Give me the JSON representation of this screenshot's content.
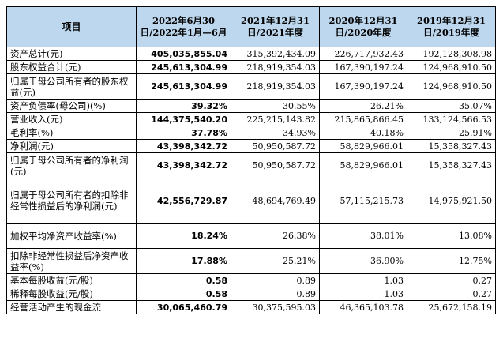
{
  "header": {
    "item": "项目",
    "col1": "2022年6月30日/2022年1月—6月",
    "col2": "2021年12月31日/2021年度",
    "col3": "2020年12月31日/2020年度",
    "col4": "2019年12月31日/2019年度"
  },
  "rows": [
    {
      "label": "资产总计(元)",
      "v1": "405,035,855.04",
      "v2": "315,392,434.09",
      "v3": "226,717,932.43",
      "v4": "192,128,308.98"
    },
    {
      "label": "股东权益合计(元)",
      "v1": "245,613,304.99",
      "v2": "218,919,354.03",
      "v3": "167,390,197.24",
      "v4": "124,968,910.50"
    },
    {
      "label": "归属于母公司所有者的股东权益(元)",
      "v1": "245,613,304.99",
      "v2": "218,919,354.03",
      "v3": "167,390,197.24",
      "v4": "124,968,910.50"
    },
    {
      "label": "资产负债率(母公司)(%)",
      "v1": "39.32%",
      "v2": "30.55%",
      "v3": "26.21%",
      "v4": "35.07%"
    },
    {
      "label": "营业收入(元)",
      "v1": "144,375,540.20",
      "v2": "225,215,143.82",
      "v3": "215,865,866.45",
      "v4": "133,124,566.53"
    },
    {
      "label": "毛利率(%)",
      "v1": "37.78%",
      "v2": "34.93%",
      "v3": "40.18%",
      "v4": "25.91%"
    },
    {
      "label": "净利润(元)",
      "v1": "43,398,342.72",
      "v2": "50,950,587.72",
      "v3": "58,829,966.01",
      "v4": "15,358,327.43"
    },
    {
      "label": "归属于母公司所有者的净利润(元)",
      "v1": "43,398,342.72",
      "v2": "50,950,587.72",
      "v3": "58,829,966.01",
      "v4": "15,358,327.43"
    },
    {
      "label": "归属于母公司所有者的扣除非经常性损益后的净利润(元)",
      "v1": "42,556,729.87",
      "v2": "48,694,769.49",
      "v3": "57,115,215.73",
      "v4": "14,975,921.50"
    },
    {
      "label": "加权平均净资产收益率(%)",
      "v1": "18.24%",
      "v2": "26.38%",
      "v3": "38.01%",
      "v4": "13.08%"
    },
    {
      "label": "扣除非经常性损益后净资产收益率(%)",
      "v1": "17.88%",
      "v2": "25.21%",
      "v3": "36.90%",
      "v4": "12.75%"
    },
    {
      "label": "基本每股收益(元/股)",
      "v1": "0.58",
      "v2": "0.89",
      "v3": "1.03",
      "v4": "0.27"
    },
    {
      "label": "稀释每股收益(元/股)",
      "v1": "0.58",
      "v2": "0.89",
      "v3": "1.03",
      "v4": "0.27"
    },
    {
      "label": "经营活动产生的现金流",
      "v1": "30,065,460.79",
      "v2": "30,375,595.03",
      "v3": "46,365,103.78",
      "v4": "25,672,158.19"
    }
  ]
}
